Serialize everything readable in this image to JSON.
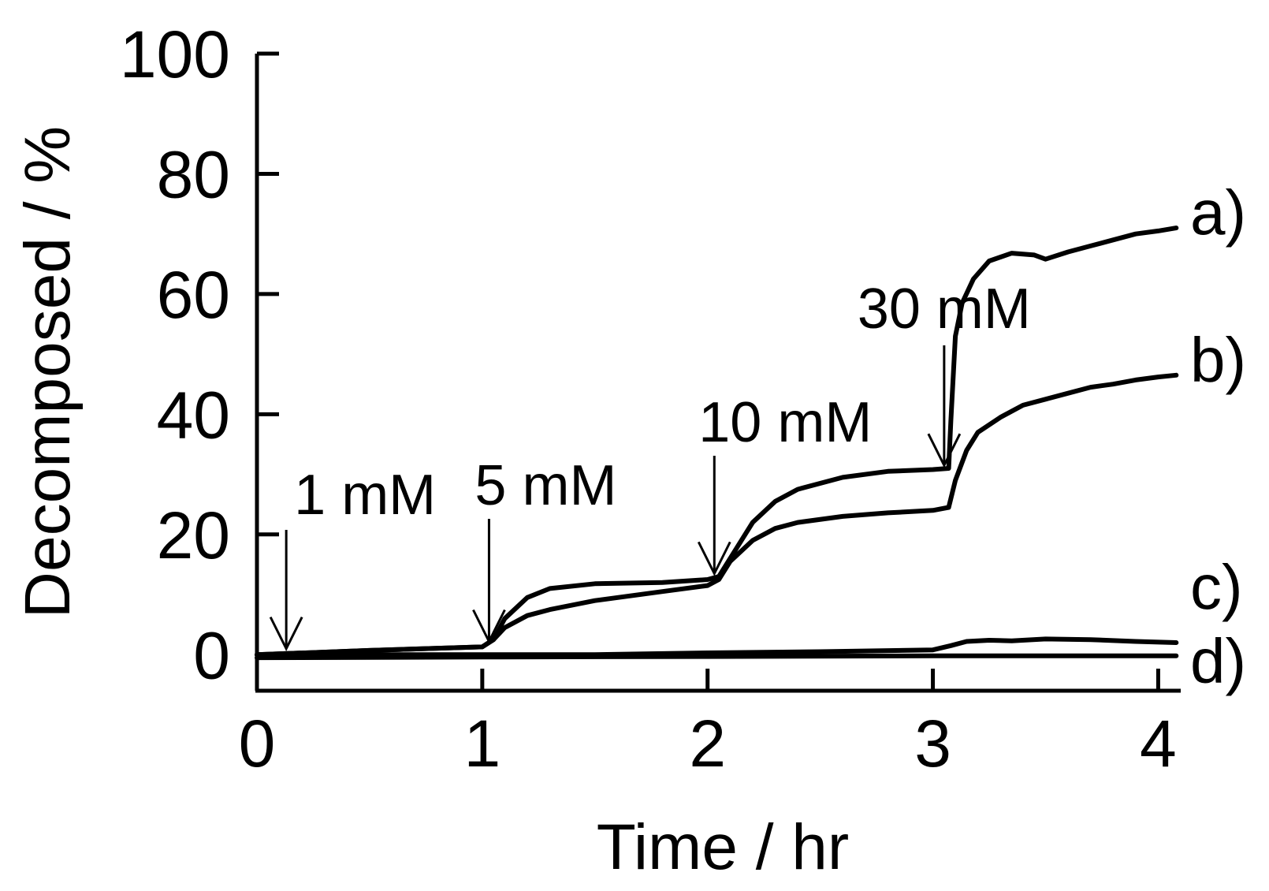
{
  "chart_data": {
    "type": "line",
    "title": "",
    "xlabel": "Time / hr",
    "ylabel": "Decomposed / %",
    "xlim": [
      0,
      4.1
    ],
    "ylim": [
      -6,
      100
    ],
    "xticks": [
      0,
      1,
      2,
      3,
      4
    ],
    "yticks": [
      0,
      20,
      40,
      60,
      80,
      100
    ],
    "xtick_labels": [
      "0",
      "1",
      "2",
      "3",
      "4"
    ],
    "ytick_labels": [
      "0",
      "20",
      "40",
      "60",
      "80",
      "100"
    ],
    "grid": false,
    "legend": "none",
    "colors": {
      "line": "#000000",
      "background": "#ffffff"
    },
    "series": [
      {
        "name": "a)",
        "x": [
          0,
          0.5,
          1.0,
          1.05,
          1.1,
          1.2,
          1.3,
          1.5,
          1.8,
          2.0,
          2.05,
          2.1,
          2.2,
          2.3,
          2.4,
          2.6,
          2.8,
          3.0,
          3.07,
          3.08,
          3.1,
          3.13,
          3.18,
          3.25,
          3.35,
          3.45,
          3.5,
          3.6,
          3.7,
          3.8,
          3.9,
          4.0,
          4.08
        ],
        "y": [
          0,
          0.7,
          1.3,
          2.5,
          6,
          9.5,
          11,
          11.8,
          12,
          12.5,
          13,
          16,
          22,
          25.5,
          27.5,
          29.5,
          30.5,
          30.8,
          31,
          39,
          53,
          58.5,
          62.5,
          65.5,
          66.8,
          66.5,
          65.8,
          67,
          68,
          69,
          70,
          70.5,
          71
        ]
      },
      {
        "name": "b)",
        "x": [
          0,
          0.5,
          1.0,
          1.05,
          1.1,
          1.2,
          1.3,
          1.5,
          1.8,
          2.0,
          2.05,
          2.1,
          2.2,
          2.3,
          2.4,
          2.6,
          2.8,
          3.0,
          3.07,
          3.1,
          3.15,
          3.2,
          3.3,
          3.4,
          3.5,
          3.6,
          3.7,
          3.8,
          3.9,
          4.0,
          4.08
        ],
        "y": [
          0,
          0.7,
          1.3,
          2.5,
          4.5,
          6.5,
          7.5,
          9,
          10.5,
          11.5,
          12.5,
          15.5,
          19,
          21,
          22,
          23,
          23.6,
          24,
          24.5,
          29,
          34,
          37,
          39.5,
          41.5,
          42.5,
          43.5,
          44.5,
          45,
          45.7,
          46.2,
          46.5
        ]
      },
      {
        "name": "c)",
        "x": [
          0,
          0.5,
          1.0,
          1.5,
          2.0,
          2.5,
          3.0,
          3.08,
          3.15,
          3.25,
          3.35,
          3.5,
          3.7,
          3.9,
          4.08
        ],
        "y": [
          0,
          0,
          0,
          0,
          0.3,
          0.5,
          0.8,
          1.5,
          2.2,
          2.4,
          2.3,
          2.6,
          2.5,
          2.2,
          2.0
        ]
      },
      {
        "name": "d)",
        "x": [
          0,
          1.0,
          2.0,
          3.0,
          4.08
        ],
        "y": [
          -0.5,
          -0.4,
          -0.3,
          -0.2,
          -0.2
        ]
      }
    ],
    "annotations": [
      {
        "text": "1 mM",
        "x": 0.13,
        "y_tip": 1.0
      },
      {
        "text": "5 mM",
        "x": 1.03,
        "y_tip": 2.2
      },
      {
        "text": "10 mM",
        "x": 2.03,
        "y_tip": 13.5
      },
      {
        "text": "30 mM",
        "x": 3.05,
        "y_tip": 31.5
      }
    ]
  }
}
